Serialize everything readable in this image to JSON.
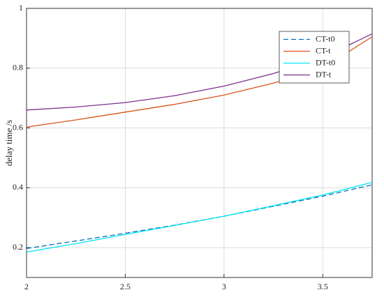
{
  "chart_data": {
    "type": "line",
    "y_label": "delay time /s",
    "x": [
      2,
      2.25,
      2.5,
      2.75,
      3,
      3.25,
      3.5,
      3.75
    ],
    "series": [
      {
        "name": "CT-t0",
        "color": "#0072BD",
        "linestyle": "dashed",
        "values": [
          0.197,
          0.222,
          0.248,
          0.275,
          0.305,
          0.338,
          0.372,
          0.41
        ]
      },
      {
        "name": "CT-t",
        "color": "#D95319",
        "linestyle": "solid",
        "values": [
          0.603,
          0.627,
          0.653,
          0.679,
          0.71,
          0.75,
          0.8,
          0.905
        ]
      },
      {
        "name": "DT-t0",
        "color": "#00E5EE",
        "linestyle": "solid",
        "values": [
          0.185,
          0.213,
          0.244,
          0.274,
          0.305,
          0.34,
          0.376,
          0.418
        ]
      },
      {
        "name": "DT-t",
        "color": "#7E2F8E",
        "linestyle": "solid",
        "values": [
          0.66,
          0.67,
          0.685,
          0.708,
          0.74,
          0.782,
          0.835,
          0.915
        ]
      }
    ],
    "xlim": [
      2,
      3.75
    ],
    "xticks": [
      2,
      2.5,
      3,
      3.5
    ],
    "ylim": [
      0.1,
      1
    ],
    "yticks": [
      0.2,
      0.4,
      0.6,
      0.8,
      1
    ],
    "grid": true,
    "legend": "upper right"
  }
}
